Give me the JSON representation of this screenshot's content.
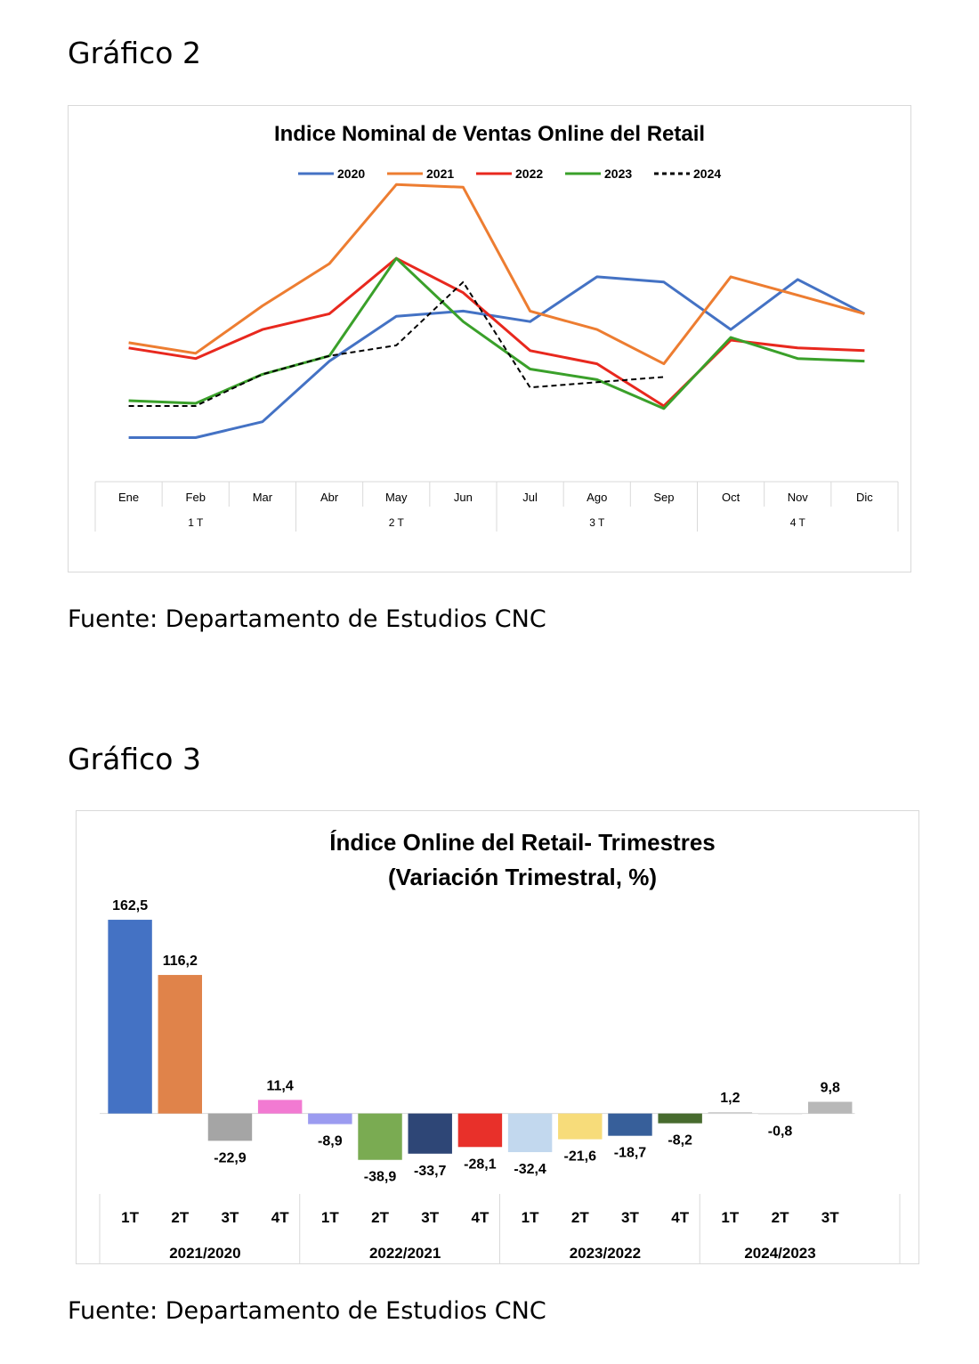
{
  "headings": {
    "chart2": "Gráfico 2",
    "chart3": "Gráfico 3"
  },
  "sources": {
    "chart2": "Fuente: Departamento de Estudios CNC",
    "chart3": "Fuente: Departamento de Estudios CNC"
  },
  "chart_data": [
    {
      "type": "line",
      "title": "Indice Nominal de Ventas Online del Retail",
      "xlabel": "",
      "ylabel": "",
      "categories": [
        "Ene",
        "Feb",
        "Mar",
        "Abr",
        "May",
        "Jun",
        "Jul",
        "Ago",
        "Sep",
        "Oct",
        "Nov",
        "Dic"
      ],
      "groups": [
        {
          "label": "1 T",
          "span": 3
        },
        {
          "label": "2 T",
          "span": 3
        },
        {
          "label": "3 T",
          "span": 3
        },
        {
          "label": "4 T",
          "span": 3
        }
      ],
      "ylim": [
        0,
        100
      ],
      "y_axis_visible": false,
      "grid": false,
      "legend": "top",
      "series": [
        {
          "name": "2020",
          "color": "#4472c4",
          "dash": "solid",
          "values": [
            12,
            12,
            18,
            41,
            58,
            60,
            56,
            73,
            71,
            53,
            72,
            59
          ]
        },
        {
          "name": "2021",
          "color": "#ed7d31",
          "dash": "solid",
          "values": [
            48,
            44,
            62,
            78,
            108,
            107,
            60,
            53,
            40,
            73,
            66,
            59
          ]
        },
        {
          "name": "2022",
          "color": "#e8281e",
          "dash": "solid",
          "values": [
            46,
            42,
            53,
            59,
            80,
            67,
            45,
            40,
            24,
            49,
            46,
            45
          ]
        },
        {
          "name": "2023",
          "color": "#3aa02a",
          "dash": "solid",
          "values": [
            26,
            25,
            36,
            43,
            80,
            56,
            38,
            34,
            23,
            50,
            42,
            41
          ]
        },
        {
          "name": "2024",
          "color": "#000000",
          "dash": "dashed",
          "values": [
            24,
            24,
            36,
            43,
            47,
            71,
            31,
            33,
            35,
            null,
            null,
            null
          ]
        }
      ]
    },
    {
      "type": "bar",
      "title": "Índice Online del Retail- Trimestres",
      "subtitle": "(Variación Trimestral, %)",
      "xlabel": "",
      "ylabel": "",
      "categories": [
        "1T",
        "2T",
        "3T",
        "4T",
        "1T",
        "2T",
        "3T",
        "4T",
        "1T",
        "2T",
        "3T",
        "4T",
        "1T",
        "2T",
        "3T"
      ],
      "groups": [
        {
          "label": "2021/2020",
          "span": 4
        },
        {
          "label": "2022/2021",
          "span": 4
        },
        {
          "label": "2023/2022",
          "span": 4
        },
        {
          "label": "2024/2023",
          "span": 3
        }
      ],
      "values": [
        162.5,
        116.2,
        -22.9,
        11.4,
        -8.9,
        -38.9,
        -33.7,
        -28.1,
        -32.4,
        -21.6,
        -18.7,
        -8.2,
        1.2,
        -0.8,
        9.8
      ],
      "value_labels": [
        "162,5",
        "116,2",
        "-22,9",
        "11,4",
        "-8,9",
        "-38,9",
        "-33,7",
        "-28,1",
        "-32,4",
        "-21,6",
        "-18,7",
        "-8,2",
        "1,2",
        "-0,8",
        "9,8"
      ],
      "colors": [
        "#4472c4",
        "#e0834a",
        "#a5a5a5",
        "#f27ad2",
        "#9b9bf0",
        "#7aab52",
        "#2e4676",
        "#e8302a",
        "#c2d8ee",
        "#f7dc7a",
        "#375f9a",
        "#476b2e",
        "#cfcfcf",
        "#e3e3e3",
        "#b8b8b8"
      ],
      "ylim": [
        -60,
        170
      ],
      "y_axis_visible": false,
      "grid": false,
      "legend": "none"
    }
  ]
}
